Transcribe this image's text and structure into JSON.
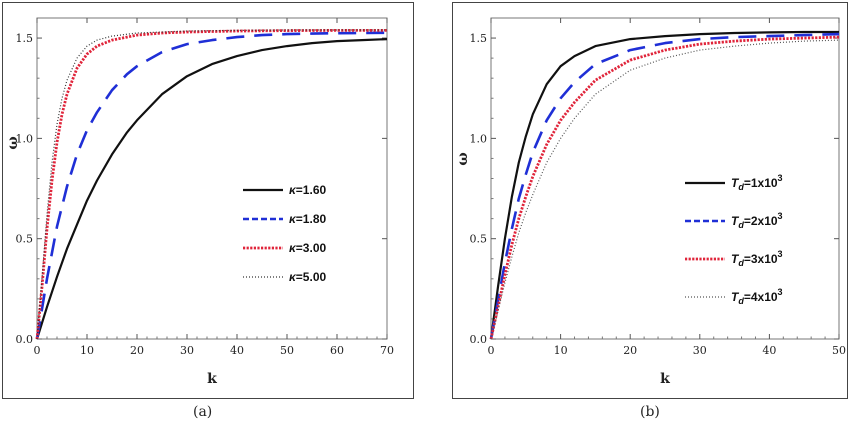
{
  "chart_data": [
    {
      "type": "line",
      "panel": "a",
      "caption": "(a)",
      "xlabel": "k",
      "ylabel": "ω",
      "xlim": [
        0,
        70
      ],
      "ylim": [
        0,
        1.6
      ],
      "xticks": [
        0,
        10,
        20,
        30,
        40,
        50,
        60,
        70
      ],
      "yticks": [
        0.0,
        0.5,
        1.0,
        1.5
      ],
      "ytick_labels": [
        "0.0",
        "0.5",
        "1.0",
        "1.5"
      ],
      "legend_position": "center-right",
      "series": [
        {
          "name": "κ=1.60",
          "legend_prefix": "κ",
          "legend_rest": "=1.60",
          "legend_sup": "",
          "color": "#111111",
          "style": "solid",
          "x": [
            0,
            2,
            4,
            6,
            8,
            10,
            12,
            15,
            18,
            20,
            25,
            30,
            35,
            40,
            45,
            50,
            55,
            60,
            65,
            70
          ],
          "y": [
            0,
            0.16,
            0.31,
            0.45,
            0.57,
            0.69,
            0.79,
            0.92,
            1.03,
            1.09,
            1.22,
            1.31,
            1.37,
            1.41,
            1.44,
            1.46,
            1.475,
            1.485,
            1.49,
            1.495
          ]
        },
        {
          "name": "κ=1.80",
          "legend_prefix": "κ",
          "legend_rest": "=1.80",
          "legend_sup": "",
          "color": "#1f2fd6",
          "style": "longdash",
          "x": [
            0,
            2,
            4,
            6,
            8,
            10,
            12,
            15,
            18,
            20,
            25,
            30,
            35,
            40,
            45,
            50,
            55,
            60,
            65,
            70
          ],
          "y": [
            0,
            0.3,
            0.56,
            0.76,
            0.92,
            1.04,
            1.13,
            1.24,
            1.32,
            1.36,
            1.43,
            1.47,
            1.49,
            1.505,
            1.515,
            1.52,
            1.522,
            1.524,
            1.525,
            1.526
          ]
        },
        {
          "name": "κ=3.00",
          "legend_prefix": "κ",
          "legend_rest": "=3.00",
          "legend_sup": "",
          "color": "#e0243a",
          "style": "dotted",
          "x": [
            0,
            1,
            2,
            3,
            4,
            5,
            6,
            8,
            10,
            12,
            15,
            20,
            25,
            30,
            40,
            50,
            60,
            70
          ],
          "y": [
            0,
            0.26,
            0.55,
            0.79,
            0.98,
            1.12,
            1.22,
            1.35,
            1.42,
            1.46,
            1.49,
            1.515,
            1.525,
            1.53,
            1.535,
            1.537,
            1.538,
            1.538
          ]
        },
        {
          "name": "κ=5.00",
          "legend_prefix": "κ",
          "legend_rest": "=5.00",
          "legend_sup": "",
          "color": "#333333",
          "style": "finedot",
          "x": [
            0,
            1,
            2,
            3,
            4,
            5,
            6,
            8,
            10,
            12,
            15,
            20,
            25,
            30,
            40,
            50,
            60,
            70
          ],
          "y": [
            0,
            0.3,
            0.62,
            0.88,
            1.07,
            1.2,
            1.29,
            1.4,
            1.46,
            1.49,
            1.51,
            1.525,
            1.53,
            1.535,
            1.538,
            1.54,
            1.54,
            1.54
          ]
        }
      ]
    },
    {
      "type": "line",
      "panel": "b",
      "caption": "(b)",
      "xlabel": "k",
      "ylabel": "ω",
      "xlim": [
        0,
        50
      ],
      "ylim": [
        0,
        1.6
      ],
      "xticks": [
        0,
        10,
        20,
        30,
        40,
        50
      ],
      "yticks": [
        0.0,
        0.5,
        1.0,
        1.5
      ],
      "ytick_labels": [
        "0.0",
        "0.5",
        "1.0",
        "1.5"
      ],
      "legend_position": "center-right",
      "series": [
        {
          "name": "Td=1x10^3",
          "legend_prefix": "T",
          "legend_sub": "d",
          "legend_rest": "=1x10",
          "legend_sup": "3",
          "color": "#111111",
          "style": "solid",
          "x": [
            0,
            1,
            2,
            3,
            4,
            5,
            6,
            8,
            10,
            12,
            15,
            20,
            25,
            30,
            35,
            40,
            45,
            50
          ],
          "y": [
            0,
            0.26,
            0.5,
            0.71,
            0.88,
            1.01,
            1.12,
            1.27,
            1.36,
            1.41,
            1.46,
            1.495,
            1.51,
            1.52,
            1.525,
            1.528,
            1.53,
            1.53
          ]
        },
        {
          "name": "Td=2x10^3",
          "legend_prefix": "T",
          "legend_sub": "d",
          "legend_rest": "=2x10",
          "legend_sup": "3",
          "color": "#1f2fd6",
          "style": "longdash",
          "x": [
            0,
            1,
            2,
            3,
            4,
            5,
            6,
            8,
            10,
            12,
            15,
            20,
            25,
            30,
            35,
            40,
            45,
            50
          ],
          "y": [
            0,
            0.19,
            0.38,
            0.55,
            0.7,
            0.82,
            0.93,
            1.09,
            1.2,
            1.28,
            1.37,
            1.44,
            1.475,
            1.495,
            1.505,
            1.51,
            1.515,
            1.52
          ]
        },
        {
          "name": "Td=3x10^3",
          "legend_prefix": "T",
          "legend_sub": "d",
          "legend_rest": "=3x10",
          "legend_sup": "3",
          "color": "#e0243a",
          "style": "dotted",
          "x": [
            0,
            1,
            2,
            3,
            4,
            5,
            6,
            8,
            10,
            12,
            15,
            20,
            25,
            30,
            35,
            40,
            45,
            50
          ],
          "y": [
            0,
            0.16,
            0.32,
            0.47,
            0.6,
            0.71,
            0.81,
            0.97,
            1.09,
            1.18,
            1.29,
            1.39,
            1.44,
            1.47,
            1.485,
            1.495,
            1.5,
            1.505
          ]
        },
        {
          "name": "Td=4x10^3",
          "legend_prefix": "T",
          "legend_sub": "d",
          "legend_rest": "=4x10",
          "legend_sup": "3",
          "color": "#555555",
          "style": "finedot",
          "x": [
            0,
            1,
            2,
            3,
            4,
            5,
            6,
            8,
            10,
            12,
            15,
            20,
            25,
            30,
            35,
            40,
            45,
            50
          ],
          "y": [
            0,
            0.14,
            0.28,
            0.41,
            0.53,
            0.63,
            0.72,
            0.88,
            1.0,
            1.1,
            1.22,
            1.34,
            1.4,
            1.44,
            1.46,
            1.475,
            1.485,
            1.49
          ]
        }
      ]
    }
  ]
}
